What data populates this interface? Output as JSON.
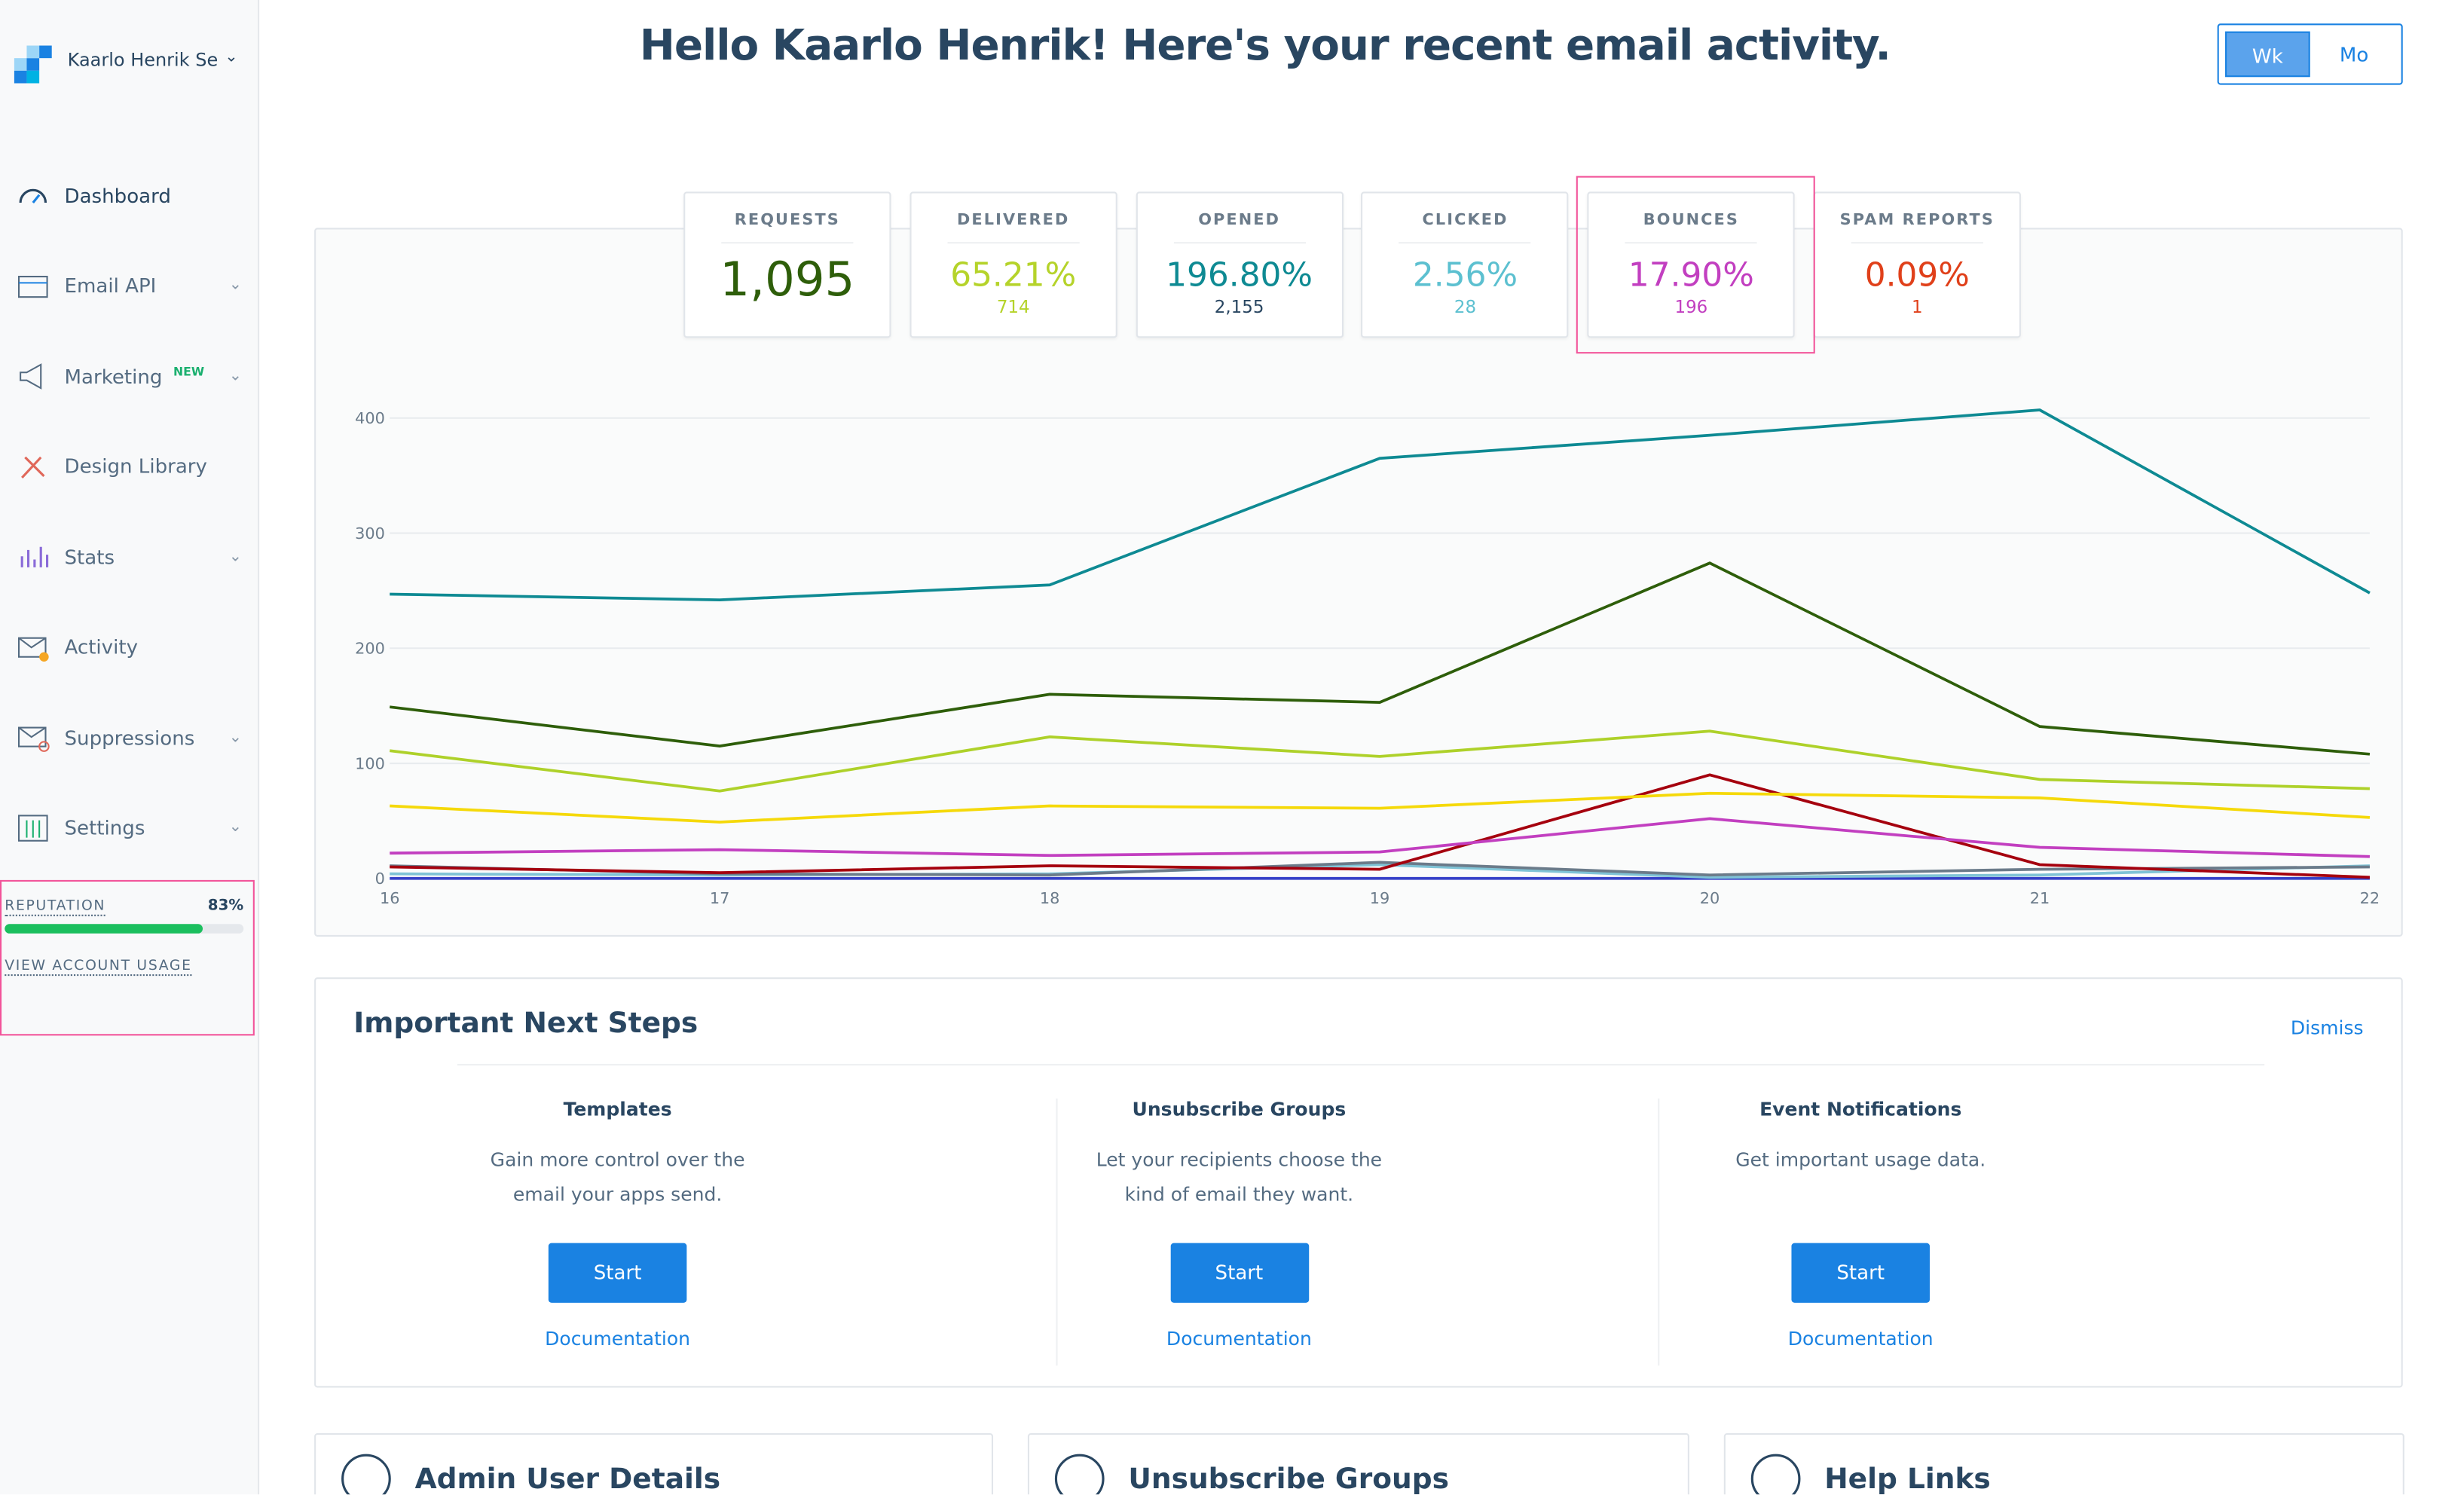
{
  "sidebar": {
    "account": "Kaarlo Henrik Segerstam",
    "nav": [
      {
        "label": "Dashboard"
      },
      {
        "label": "Email API"
      },
      {
        "label": "Marketing",
        "badge": "NEW"
      },
      {
        "label": "Design Library"
      },
      {
        "label": "Stats"
      },
      {
        "label": "Activity"
      },
      {
        "label": "Suppressions"
      },
      {
        "label": "Settings"
      }
    ],
    "reputation_label": "REPUTATION",
    "reputation_value": "83%",
    "usage_link": "VIEW ACCOUNT USAGE"
  },
  "header": {
    "title": "Hello Kaarlo Henrik! Here's your recent email activity.",
    "toggle": [
      "Wk",
      "Mo"
    ]
  },
  "stats": [
    {
      "label": "REQUESTS",
      "value": "1,095"
    },
    {
      "label": "DELIVERED",
      "value": "65.21%",
      "count": "714"
    },
    {
      "label": "OPENED",
      "value": "196.80%",
      "count": "2,155"
    },
    {
      "label": "CLICKED",
      "value": "2.56%",
      "count": "28"
    },
    {
      "label": "BOUNCES",
      "value": "17.90%",
      "count": "196"
    },
    {
      "label": "SPAM REPORTS",
      "value": "0.09%",
      "count": "1"
    }
  ],
  "chart_data": {
    "type": "line",
    "categories": [
      "16",
      "17",
      "18",
      "19",
      "20",
      "21",
      "22"
    ],
    "ylim": [
      0,
      420
    ],
    "yticks": [
      0,
      100,
      200,
      300,
      400
    ],
    "grid": true,
    "series": [
      {
        "color": "#0e8a93",
        "values": [
          247,
          242,
          255,
          365,
          385,
          407,
          248
        ]
      },
      {
        "color": "#2e5e0a",
        "values": [
          149,
          115,
          160,
          153,
          274,
          132,
          108
        ]
      },
      {
        "color": "#aed12a",
        "values": [
          111,
          76,
          123,
          106,
          128,
          86,
          78
        ]
      },
      {
        "color": "#f5d90a",
        "values": [
          63,
          49,
          63,
          61,
          74,
          70,
          53
        ]
      },
      {
        "color": "#c23fc0",
        "values": [
          22,
          25,
          20,
          23,
          52,
          27,
          19
        ]
      },
      {
        "color": "#a5000e",
        "values": [
          10,
          5,
          11,
          8,
          90,
          12,
          1
        ]
      },
      {
        "color": "#6b7b8a",
        "values": [
          11,
          4,
          3,
          14,
          3,
          8,
          10
        ]
      },
      {
        "color": "#7fc3d6",
        "values": [
          4,
          3,
          4,
          12,
          1,
          3,
          11
        ]
      },
      {
        "color": "#3540c8",
        "values": [
          0,
          0,
          0,
          0,
          0,
          0,
          0
        ]
      }
    ]
  },
  "next_steps": {
    "title": "Important Next Steps",
    "dismiss": "Dismiss",
    "items": [
      {
        "title": "Templates",
        "text": "Gain more control over the email your apps send.",
        "button": "Start",
        "link": "Documentation"
      },
      {
        "title": "Unsubscribe Groups",
        "text": "Let your recipients choose the kind of email they want.",
        "button": "Start",
        "link": "Documentation"
      },
      {
        "title": "Event Notifications",
        "text": "Get important usage data.",
        "button": "Start",
        "link": "Documentation"
      }
    ]
  },
  "bottom_cards": [
    "Admin User Details",
    "Unsubscribe Groups",
    "Help Links"
  ]
}
